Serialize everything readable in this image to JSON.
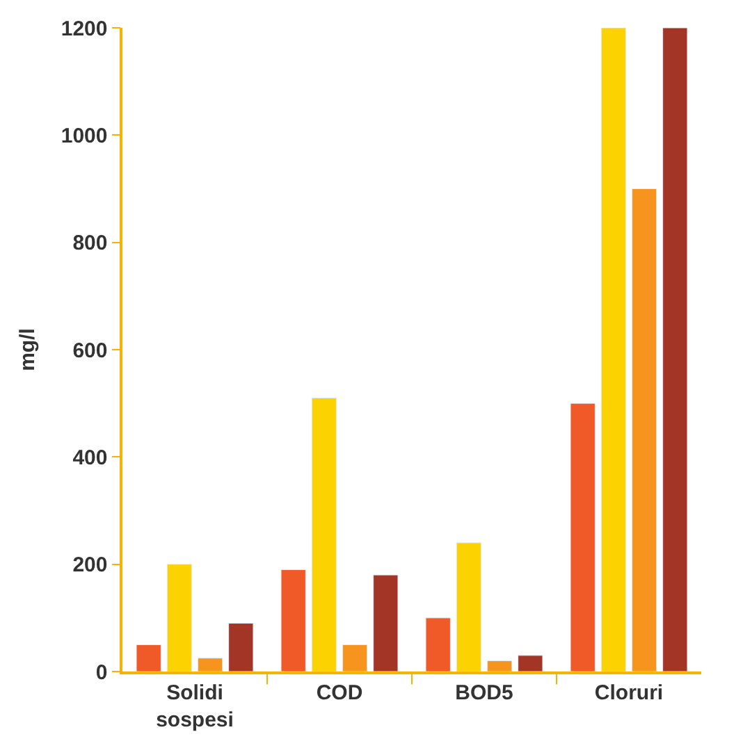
{
  "chart_data": {
    "type": "bar",
    "ylabel": "mg/l",
    "categories": [
      "Solidi sospesi",
      "COD",
      "BOD5",
      "Cloruri"
    ],
    "series": [
      {
        "color": "#f05a28",
        "values": [
          50,
          190,
          100,
          500
        ]
      },
      {
        "color": "#fcd200",
        "values": [
          200,
          510,
          240,
          1200
        ]
      },
      {
        "color": "#f7941d",
        "values": [
          25,
          50,
          20,
          900
        ]
      },
      {
        "color": "#a33526",
        "values": [
          90,
          180,
          30,
          1200
        ]
      }
    ],
    "ylim": [
      0,
      1200
    ],
    "yticks": [
      0,
      200,
      400,
      600,
      800,
      1000,
      1200
    ]
  }
}
